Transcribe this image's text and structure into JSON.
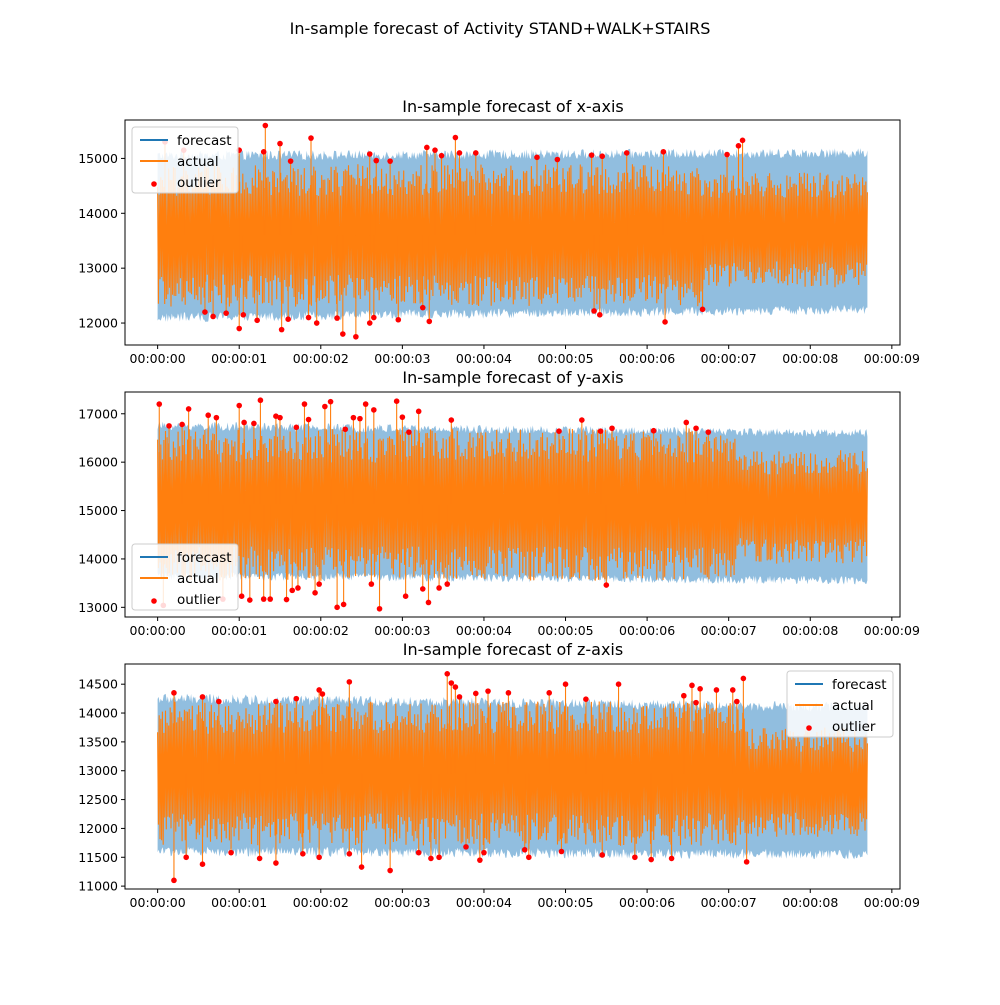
{
  "figure": {
    "title": "In-sample forecast of Activity STAND+WALK+STAIRS"
  },
  "colors": {
    "forecast": "#1f77b4",
    "actual": "#ff7f0e",
    "band": "#8bbadd",
    "outlier": "#ff0000"
  },
  "chart_data": [
    {
      "type": "line",
      "title": "In-sample forecast of x-axis",
      "xlabel": "",
      "ylabel": "",
      "xlim": [
        -0.4,
        9.1
      ],
      "ylim": [
        11600,
        15700
      ],
      "xticks": [
        0,
        1,
        2,
        3,
        4,
        5,
        6,
        7,
        8,
        9
      ],
      "xtick_labels": [
        "00:00:00",
        "00:00:01",
        "00:00:02",
        "00:00:03",
        "00:00:04",
        "00:00:05",
        "00:00:06",
        "00:00:07",
        "00:00:08",
        "00:00:09"
      ],
      "yticks": [
        12000,
        13000,
        14000,
        15000
      ],
      "ytick_labels": [
        "12000",
        "13000",
        "14000",
        "15000"
      ],
      "legend": {
        "placement": "upper-left",
        "entries": [
          "forecast",
          "actual",
          "outlier"
        ]
      },
      "x_end_seconds": 8.7,
      "actual_envelope": {
        "early": [
          12300,
          14900
        ],
        "late": [
          12650,
          14750
        ],
        "change_at_seconds": 6.7
      },
      "forecast_band": {
        "early": [
          12100,
          15050
        ],
        "late": [
          12250,
          15100
        ]
      },
      "forecast_center": 13600,
      "outliers": [
        {
          "t": 0.09,
          "v": 15300
        },
        {
          "t": 0.32,
          "v": 15150
        },
        {
          "t": 0.58,
          "v": 12200
        },
        {
          "t": 0.68,
          "v": 12120
        },
        {
          "t": 0.84,
          "v": 12180
        },
        {
          "t": 1.0,
          "v": 15150
        },
        {
          "t": 1.0,
          "v": 11900
        },
        {
          "t": 1.05,
          "v": 12150
        },
        {
          "t": 1.22,
          "v": 12050
        },
        {
          "t": 1.3,
          "v": 15120
        },
        {
          "t": 1.32,
          "v": 15600
        },
        {
          "t": 1.5,
          "v": 15270
        },
        {
          "t": 1.52,
          "v": 11880
        },
        {
          "t": 1.6,
          "v": 12070
        },
        {
          "t": 1.63,
          "v": 14950
        },
        {
          "t": 1.85,
          "v": 12100
        },
        {
          "t": 1.88,
          "v": 15370
        },
        {
          "t": 1.95,
          "v": 12000
        },
        {
          "t": 2.2,
          "v": 12090
        },
        {
          "t": 2.27,
          "v": 11800
        },
        {
          "t": 2.43,
          "v": 11750
        },
        {
          "t": 2.6,
          "v": 15080
        },
        {
          "t": 2.6,
          "v": 12000
        },
        {
          "t": 2.65,
          "v": 12100
        },
        {
          "t": 2.68,
          "v": 14960
        },
        {
          "t": 2.85,
          "v": 14950
        },
        {
          "t": 2.95,
          "v": 12060
        },
        {
          "t": 3.25,
          "v": 12280
        },
        {
          "t": 3.3,
          "v": 15200
        },
        {
          "t": 3.33,
          "v": 12030
        },
        {
          "t": 3.4,
          "v": 15150
        },
        {
          "t": 3.48,
          "v": 15050
        },
        {
          "t": 3.65,
          "v": 15380
        },
        {
          "t": 3.7,
          "v": 15100
        },
        {
          "t": 3.9,
          "v": 15100
        },
        {
          "t": 4.65,
          "v": 15020
        },
        {
          "t": 4.9,
          "v": 14980
        },
        {
          "t": 5.32,
          "v": 15060
        },
        {
          "t": 5.35,
          "v": 12220
        },
        {
          "t": 5.42,
          "v": 12150
        },
        {
          "t": 5.45,
          "v": 15040
        },
        {
          "t": 5.75,
          "v": 15100
        },
        {
          "t": 6.2,
          "v": 15120
        },
        {
          "t": 6.22,
          "v": 12020
        },
        {
          "t": 6.68,
          "v": 12250
        },
        {
          "t": 6.98,
          "v": 15070
        },
        {
          "t": 7.12,
          "v": 15230
        },
        {
          "t": 7.17,
          "v": 15330
        }
      ]
    },
    {
      "type": "line",
      "title": "In-sample forecast of y-axis",
      "xlabel": "",
      "ylabel": "",
      "xlim": [
        -0.4,
        9.1
      ],
      "ylim": [
        12800,
        17450
      ],
      "xticks": [
        0,
        1,
        2,
        3,
        4,
        5,
        6,
        7,
        8,
        9
      ],
      "xtick_labels": [
        "00:00:00",
        "00:00:01",
        "00:00:02",
        "00:00:03",
        "00:00:04",
        "00:00:05",
        "00:00:06",
        "00:00:07",
        "00:00:08",
        "00:00:09"
      ],
      "yticks": [
        13000,
        14000,
        15000,
        16000,
        17000
      ],
      "ytick_labels": [
        "13000",
        "14000",
        "15000",
        "16000",
        "17000"
      ],
      "legend": {
        "placement": "lower-left",
        "entries": [
          "forecast",
          "actual",
          "outlier"
        ]
      },
      "x_end_seconds": 8.7,
      "actual_envelope": {
        "early": [
          13550,
          16700
        ],
        "late": [
          13900,
          16250
        ],
        "change_at_seconds": 7.1
      },
      "forecast_band": {
        "early": [
          13650,
          16750
        ],
        "late": [
          13550,
          16600
        ]
      },
      "forecast_center": 15150,
      "outliers": [
        {
          "t": 0.02,
          "v": 17200
        },
        {
          "t": 0.07,
          "v": 13040
        },
        {
          "t": 0.14,
          "v": 16750
        },
        {
          "t": 0.3,
          "v": 16780
        },
        {
          "t": 0.38,
          "v": 17100
        },
        {
          "t": 0.62,
          "v": 16970
        },
        {
          "t": 0.72,
          "v": 16920
        },
        {
          "t": 0.8,
          "v": 13170
        },
        {
          "t": 1.0,
          "v": 17170
        },
        {
          "t": 1.03,
          "v": 13230
        },
        {
          "t": 1.06,
          "v": 16820
        },
        {
          "t": 1.13,
          "v": 13150
        },
        {
          "t": 1.18,
          "v": 16800
        },
        {
          "t": 1.26,
          "v": 17280
        },
        {
          "t": 1.3,
          "v": 13170
        },
        {
          "t": 1.38,
          "v": 13170
        },
        {
          "t": 1.45,
          "v": 16950
        },
        {
          "t": 1.5,
          "v": 16920
        },
        {
          "t": 1.58,
          "v": 13160
        },
        {
          "t": 1.65,
          "v": 13350
        },
        {
          "t": 1.7,
          "v": 16720
        },
        {
          "t": 1.72,
          "v": 13400
        },
        {
          "t": 1.8,
          "v": 17200
        },
        {
          "t": 1.85,
          "v": 16880
        },
        {
          "t": 1.93,
          "v": 13300
        },
        {
          "t": 1.98,
          "v": 13480
        },
        {
          "t": 2.05,
          "v": 17150
        },
        {
          "t": 2.12,
          "v": 17250
        },
        {
          "t": 2.2,
          "v": 13000
        },
        {
          "t": 2.28,
          "v": 13060
        },
        {
          "t": 2.3,
          "v": 16680
        },
        {
          "t": 2.4,
          "v": 16920
        },
        {
          "t": 2.48,
          "v": 16900
        },
        {
          "t": 2.55,
          "v": 17200
        },
        {
          "t": 2.62,
          "v": 13480
        },
        {
          "t": 2.65,
          "v": 17080
        },
        {
          "t": 2.72,
          "v": 12970
        },
        {
          "t": 2.93,
          "v": 17260
        },
        {
          "t": 3.0,
          "v": 16930
        },
        {
          "t": 3.04,
          "v": 13230
        },
        {
          "t": 3.08,
          "v": 16620
        },
        {
          "t": 3.2,
          "v": 17050
        },
        {
          "t": 3.25,
          "v": 13380
        },
        {
          "t": 3.32,
          "v": 13100
        },
        {
          "t": 3.45,
          "v": 13400
        },
        {
          "t": 3.55,
          "v": 13480
        },
        {
          "t": 3.6,
          "v": 16870
        },
        {
          "t": 4.92,
          "v": 16640
        },
        {
          "t": 5.2,
          "v": 16870
        },
        {
          "t": 5.43,
          "v": 16640
        },
        {
          "t": 5.5,
          "v": 13460
        },
        {
          "t": 5.57,
          "v": 16700
        },
        {
          "t": 6.08,
          "v": 16650
        },
        {
          "t": 6.48,
          "v": 16820
        },
        {
          "t": 6.6,
          "v": 16700
        },
        {
          "t": 6.75,
          "v": 16620
        }
      ]
    },
    {
      "type": "line",
      "title": "In-sample forecast of z-axis",
      "xlabel": "",
      "ylabel": "",
      "xlim": [
        -0.4,
        9.1
      ],
      "ylim": [
        10950,
        14850
      ],
      "xticks": [
        0,
        1,
        2,
        3,
        4,
        5,
        6,
        7,
        8,
        9
      ],
      "xtick_labels": [
        "00:00:00",
        "00:00:01",
        "00:00:02",
        "00:00:03",
        "00:00:04",
        "00:00:05",
        "00:00:06",
        "00:00:07",
        "00:00:08",
        "00:00:09"
      ],
      "yticks": [
        11000,
        11500,
        12000,
        12500,
        13000,
        13500,
        14000,
        14500
      ],
      "ytick_labels": [
        "11000",
        "11500",
        "12000",
        "12500",
        "13000",
        "13500",
        "14000",
        "14500"
      ],
      "legend": {
        "placement": "upper-right",
        "entries": [
          "forecast",
          "actual",
          "outlier"
        ]
      },
      "x_end_seconds": 8.7,
      "actual_envelope": {
        "early": [
          11700,
          14200
        ],
        "late": [
          11850,
          13750
        ],
        "change_at_seconds": 7.2
      },
      "forecast_band": {
        "early": [
          11600,
          14250
        ],
        "late": [
          11550,
          14100
        ]
      },
      "forecast_center": 12950,
      "outliers": [
        {
          "t": 0.2,
          "v": 14350
        },
        {
          "t": 0.2,
          "v": 11100
        },
        {
          "t": 0.35,
          "v": 11500
        },
        {
          "t": 0.55,
          "v": 14280
        },
        {
          "t": 0.55,
          "v": 11380
        },
        {
          "t": 0.75,
          "v": 14200
        },
        {
          "t": 0.9,
          "v": 11580
        },
        {
          "t": 1.25,
          "v": 11480
        },
        {
          "t": 1.45,
          "v": 14200
        },
        {
          "t": 1.45,
          "v": 11400
        },
        {
          "t": 1.7,
          "v": 14250
        },
        {
          "t": 1.78,
          "v": 11560
        },
        {
          "t": 1.98,
          "v": 14400
        },
        {
          "t": 1.98,
          "v": 11500
        },
        {
          "t": 2.02,
          "v": 14330
        },
        {
          "t": 2.35,
          "v": 14540
        },
        {
          "t": 2.35,
          "v": 11560
        },
        {
          "t": 2.5,
          "v": 11330
        },
        {
          "t": 2.85,
          "v": 11270
        },
        {
          "t": 3.2,
          "v": 11580
        },
        {
          "t": 3.35,
          "v": 11480
        },
        {
          "t": 3.45,
          "v": 11500
        },
        {
          "t": 3.55,
          "v": 14680
        },
        {
          "t": 3.6,
          "v": 14520
        },
        {
          "t": 3.65,
          "v": 14450
        },
        {
          "t": 3.7,
          "v": 14280
        },
        {
          "t": 3.78,
          "v": 11680
        },
        {
          "t": 3.9,
          "v": 14340
        },
        {
          "t": 3.95,
          "v": 11450
        },
        {
          "t": 4.0,
          "v": 11580
        },
        {
          "t": 4.05,
          "v": 14380
        },
        {
          "t": 4.3,
          "v": 14350
        },
        {
          "t": 4.5,
          "v": 11630
        },
        {
          "t": 4.55,
          "v": 11500
        },
        {
          "t": 4.8,
          "v": 14350
        },
        {
          "t": 4.95,
          "v": 11600
        },
        {
          "t": 5.0,
          "v": 14500
        },
        {
          "t": 5.25,
          "v": 14240
        },
        {
          "t": 5.45,
          "v": 11540
        },
        {
          "t": 5.65,
          "v": 14500
        },
        {
          "t": 5.85,
          "v": 11500
        },
        {
          "t": 6.05,
          "v": 11460
        },
        {
          "t": 6.3,
          "v": 11480
        },
        {
          "t": 6.45,
          "v": 14300
        },
        {
          "t": 6.55,
          "v": 14480
        },
        {
          "t": 6.6,
          "v": 14180
        },
        {
          "t": 6.65,
          "v": 14420
        },
        {
          "t": 6.85,
          "v": 14400
        },
        {
          "t": 7.05,
          "v": 14400
        },
        {
          "t": 7.1,
          "v": 14200
        },
        {
          "t": 7.18,
          "v": 14600
        },
        {
          "t": 7.22,
          "v": 11420
        }
      ]
    }
  ]
}
